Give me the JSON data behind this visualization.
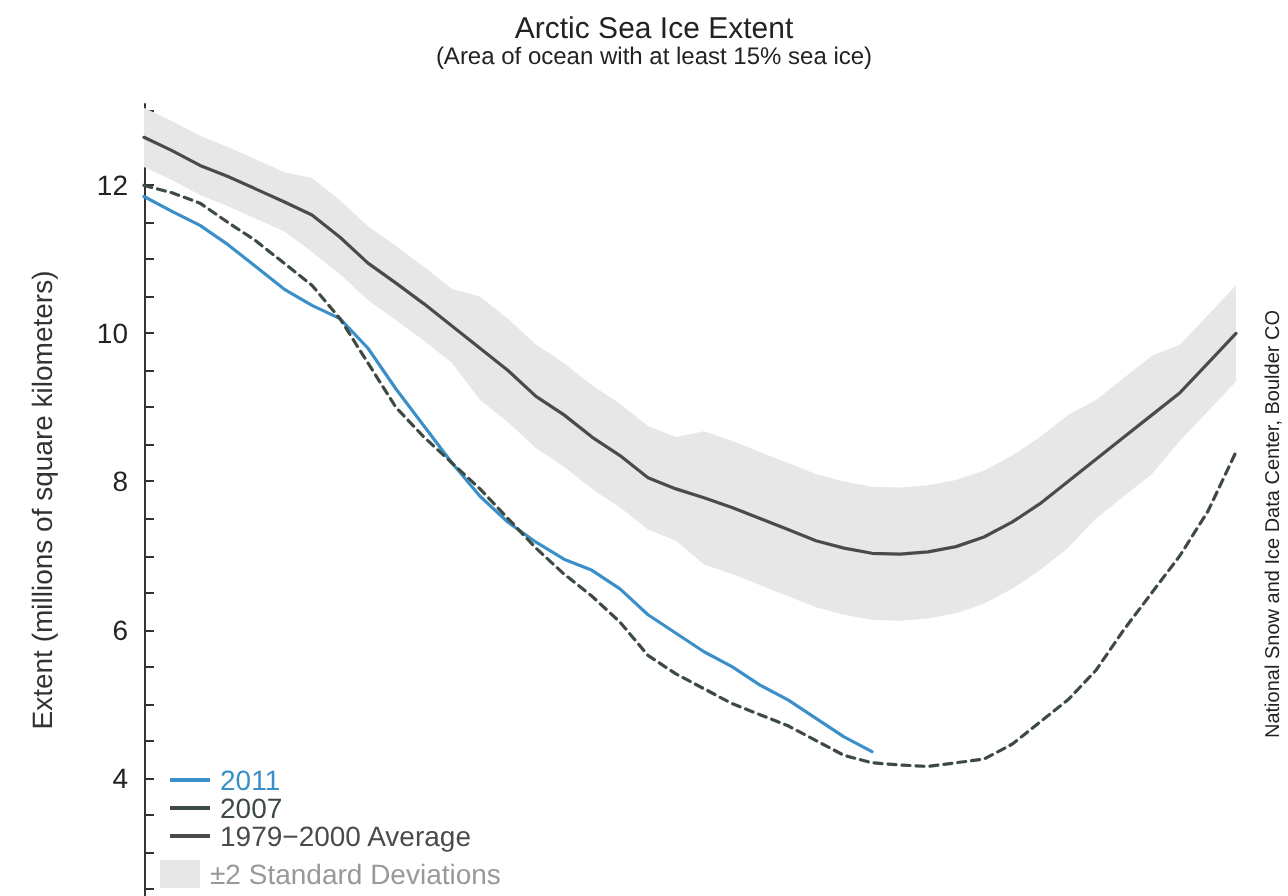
{
  "chart_data": {
    "type": "line",
    "title": "Arctic Sea Ice Extent",
    "subtitle": "(Area of ocean with at least 15% sea ice)",
    "ylabel": "Extent (millions of square kilometers)",
    "annotations": [
      "National Snow and Ice Data Center, Boulder CO",
      "±2 Standard Deviations"
    ],
    "categories": [
      null,
      null,
      null,
      null,
      null,
      null,
      null,
      null,
      null,
      null,
      null,
      null,
      null,
      null,
      null,
      null,
      null,
      null,
      null,
      null,
      null,
      null,
      null,
      null,
      null,
      null,
      null,
      null,
      null,
      null,
      null,
      null,
      null,
      null,
      null,
      null,
      null,
      null,
      null,
      null
    ],
    "ylim": [
      2.4,
      13.1
    ],
    "yticks": [
      {
        "value": 2.5,
        "label": null
      },
      {
        "value": 3,
        "label": null
      },
      {
        "value": 3.5,
        "label": null
      },
      4,
      {
        "value": 4.5,
        "label": null
      },
      {
        "value": 5,
        "label": null
      },
      {
        "value": 5.5,
        "label": null
      },
      6,
      {
        "value": 6.5,
        "label": null
      },
      {
        "value": 7,
        "label": null
      },
      {
        "value": 7.5,
        "label": null
      },
      8,
      {
        "value": 8.5,
        "label": null
      },
      {
        "value": 9,
        "label": null
      },
      {
        "value": 9.5,
        "label": null
      },
      10,
      {
        "value": 10.5,
        "label": null
      },
      {
        "value": 11,
        "label": null
      },
      {
        "value": 11.5,
        "label": null
      },
      12,
      {
        "value": 12.5,
        "label": null
      },
      {
        "value": 13,
        "label": null
      }
    ],
    "tick_labels": "y",
    "grid": false,
    "legend": "bottom left",
    "marker": "none",
    "series": [
      {
        "name": "2011",
        "color": "#3a8fc8",
        "line_style": "solid",
        "values": [
          11.85,
          11.65,
          11.46,
          11.2,
          10.9,
          10.6,
          10.38,
          10.2,
          9.8,
          9.25,
          8.75,
          8.25,
          7.8,
          7.45,
          7.18,
          6.95,
          6.8,
          6.55,
          6.2,
          5.95,
          5.7,
          5.5,
          5.25,
          5.05,
          4.8,
          4.55,
          4.35,
          null,
          null,
          null,
          null,
          null,
          null,
          null,
          null,
          null,
          null,
          null,
          null,
          null
        ]
      },
      {
        "name": "2007",
        "color": "#3d4a40",
        "line_style": "dashed",
        "values": [
          12.0,
          11.9,
          11.76,
          11.5,
          11.25,
          10.95,
          10.65,
          10.2,
          9.6,
          9.0,
          8.6,
          8.25,
          7.9,
          7.5,
          7.1,
          6.75,
          6.45,
          6.1,
          5.65,
          5.4,
          5.2,
          5.0,
          4.85,
          4.7,
          4.5,
          4.3,
          4.2,
          4.17,
          4.15,
          4.2,
          4.25,
          4.45,
          4.75,
          5.05,
          5.45,
          6.0,
          6.5,
          7.0,
          7.6,
          8.4
        ]
      },
      {
        "name": "1979−2000 Average",
        "color": "#4a4a4a",
        "line_style": "solid",
        "values": [
          12.65,
          12.47,
          12.27,
          12.12,
          11.95,
          11.78,
          11.6,
          11.3,
          10.95,
          10.68,
          10.4,
          10.1,
          9.8,
          9.5,
          9.15,
          8.9,
          8.6,
          8.35,
          8.05,
          7.9,
          7.78,
          7.65,
          7.5,
          7.35,
          7.2,
          7.1,
          7.03,
          7.02,
          7.05,
          7.12,
          7.25,
          7.45,
          7.7,
          8.0,
          8.3,
          8.6,
          8.9,
          9.2,
          9.6,
          10.0
        ],
        "upper": [
          13.05,
          12.87,
          12.67,
          12.52,
          12.35,
          12.18,
          12.1,
          11.8,
          11.45,
          11.18,
          10.9,
          10.6,
          10.5,
          10.2,
          9.85,
          9.6,
          9.3,
          9.05,
          8.75,
          8.6,
          8.68,
          8.55,
          8.4,
          8.25,
          8.1,
          8.0,
          7.93,
          7.92,
          7.95,
          8.02,
          8.15,
          8.35,
          8.6,
          8.9,
          9.1,
          9.4,
          9.7,
          9.85,
          10.25,
          10.65
        ],
        "lower": [
          12.25,
          12.07,
          11.87,
          11.72,
          11.55,
          11.38,
          11.1,
          10.8,
          10.45,
          10.18,
          9.9,
          9.6,
          9.1,
          8.8,
          8.45,
          8.2,
          7.9,
          7.65,
          7.35,
          7.2,
          6.88,
          6.75,
          6.6,
          6.45,
          6.3,
          6.2,
          6.13,
          6.12,
          6.15,
          6.22,
          6.35,
          6.55,
          6.8,
          7.1,
          7.5,
          7.8,
          8.1,
          8.55,
          8.95,
          9.35
        ]
      }
    ]
  }
}
